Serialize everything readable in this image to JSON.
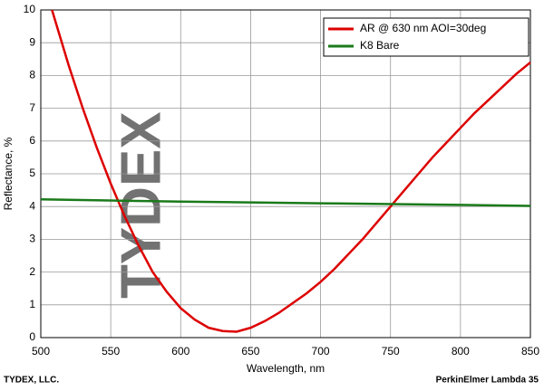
{
  "chart_data": {
    "type": "line",
    "watermark": "TYDEX",
    "x_label": "Wavelength, nm",
    "y_label": "Reflectance, %",
    "footer_left": "TYDEX, LLC.",
    "footer_right": "PerkinElmer Lambda 35",
    "xlim": [
      500,
      850
    ],
    "xticks": [
      500,
      550,
      600,
      650,
      700,
      750,
      800,
      850
    ],
    "ylim": [
      0,
      10
    ],
    "yticks": [
      0,
      1,
      2,
      3,
      4,
      5,
      6,
      7,
      8,
      9,
      10
    ],
    "grid": true,
    "legend": "top-right",
    "series": [
      {
        "name": "AR @ 630 nm AOI=30deg",
        "color": "#dd0000",
        "x": [
          508,
          520,
          530,
          540,
          550,
          560,
          570,
          580,
          590,
          600,
          610,
          620,
          630,
          640,
          650,
          660,
          670,
          680,
          690,
          700,
          710,
          720,
          730,
          740,
          750,
          760,
          770,
          780,
          790,
          800,
          810,
          820,
          830,
          840,
          850
        ],
        "values": [
          10,
          8.3,
          7.0,
          5.8,
          4.7,
          3.7,
          2.8,
          2.0,
          1.4,
          0.9,
          0.55,
          0.3,
          0.2,
          0.18,
          0.3,
          0.5,
          0.75,
          1.05,
          1.35,
          1.7,
          2.1,
          2.55,
          3.0,
          3.5,
          4.0,
          4.5,
          5.0,
          5.5,
          5.95,
          6.4,
          6.85,
          7.25,
          7.65,
          8.05,
          8.4
        ]
      },
      {
        "name": "K8 Bare",
        "color": "#1a7a1a",
        "x": [
          500,
          600,
          700,
          800,
          850
        ],
        "values": [
          4.22,
          4.15,
          4.1,
          4.05,
          4.02
        ]
      }
    ]
  }
}
